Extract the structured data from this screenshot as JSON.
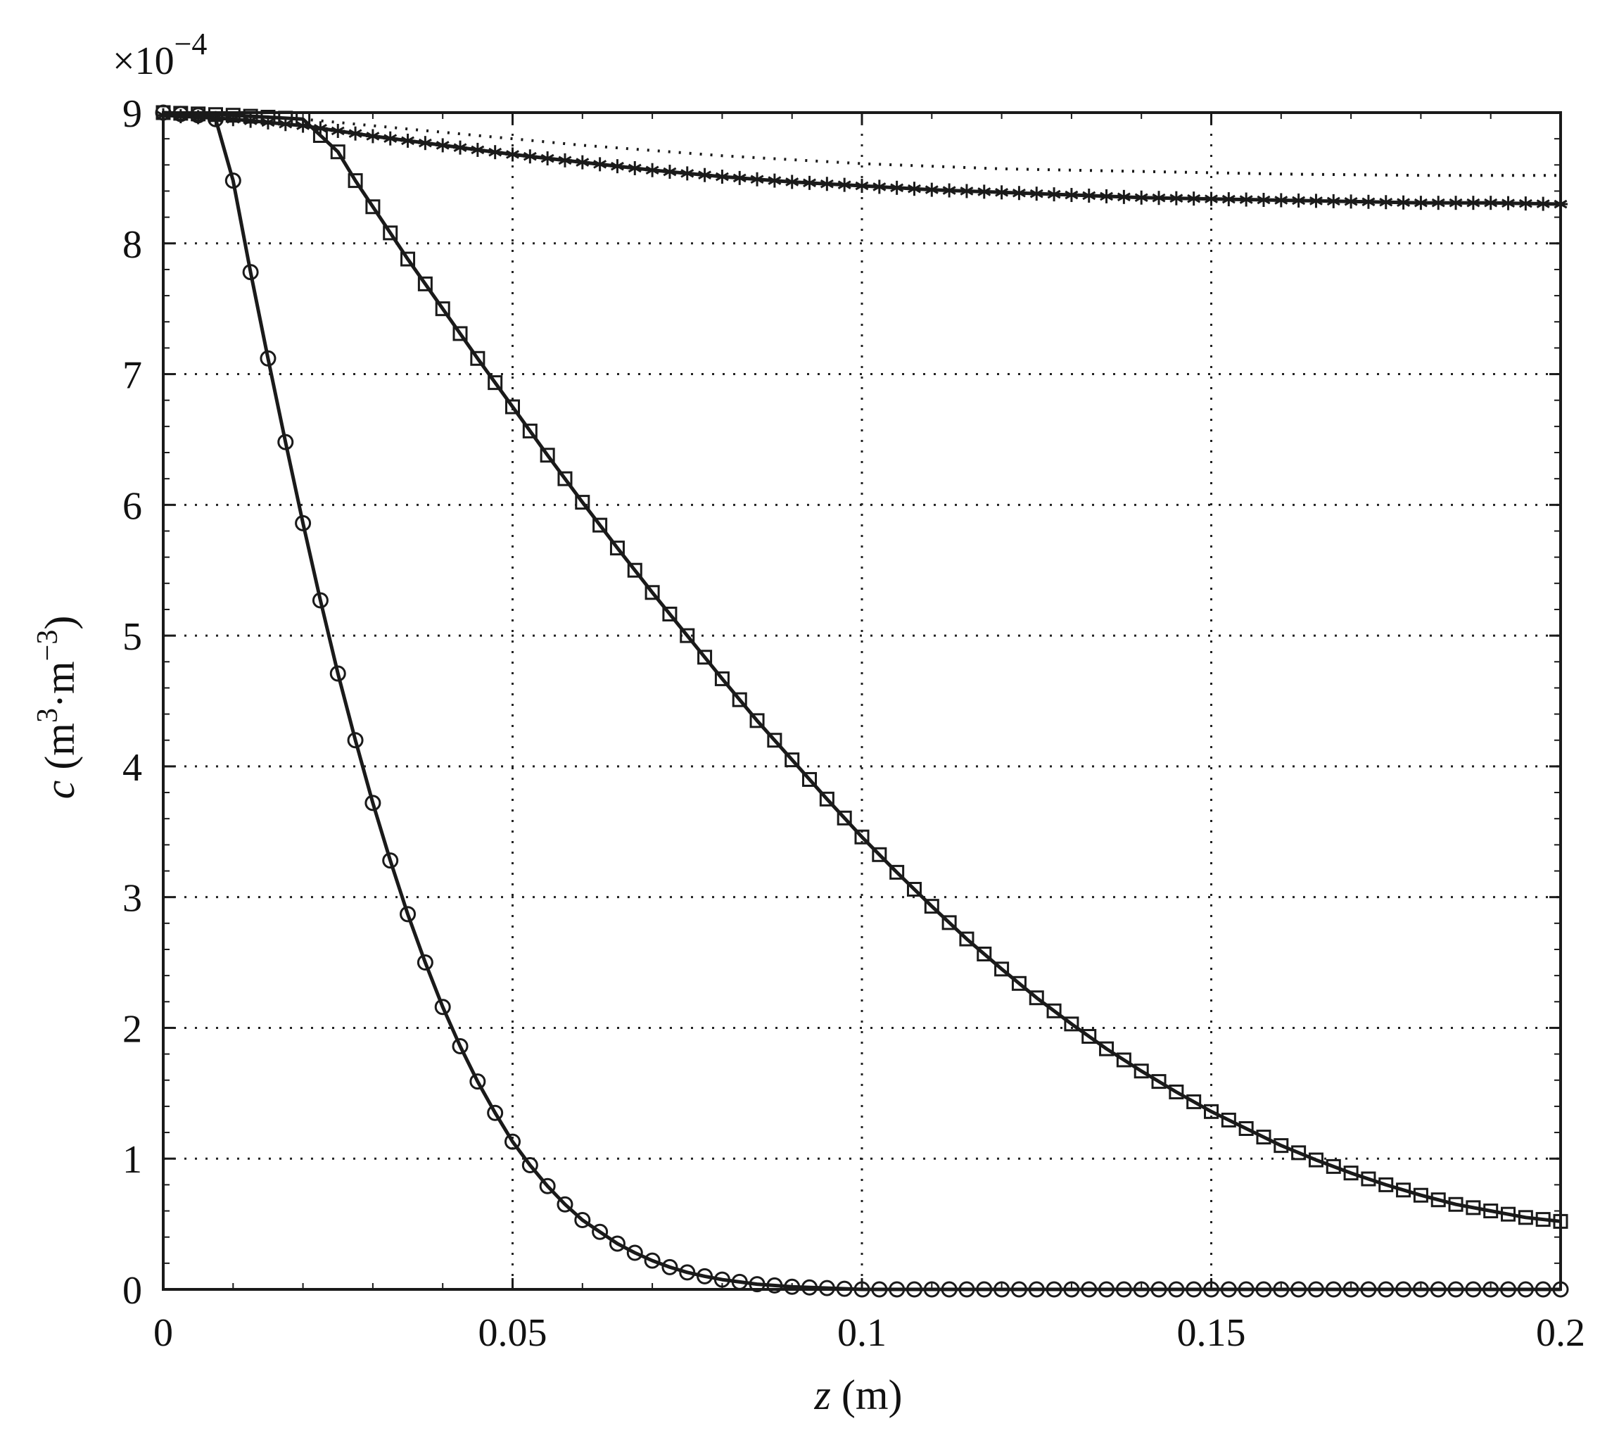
{
  "chart_data": {
    "type": "line",
    "title": "",
    "xlabel": {
      "var": "z",
      "unit": " (m)"
    },
    "ylabel": {
      "var": "c",
      "unit_pre": " (m",
      "sup1": "3",
      "mid": "·m",
      "sup2": "−3",
      "unit_post": ")"
    },
    "multiplier": {
      "base": "×10",
      "exp": "−4"
    },
    "xlim": [
      0,
      0.2
    ],
    "ylim": [
      0,
      9
    ],
    "grid": true,
    "grid_style": "dotted",
    "xticks": [
      0,
      0.05,
      0.1,
      0.15,
      0.2
    ],
    "xtick_labels": [
      "0",
      "0.05",
      "0.1",
      "0.15",
      "0.2"
    ],
    "yticks": [
      0,
      1,
      2,
      3,
      4,
      5,
      6,
      7,
      8,
      9
    ],
    "ytick_labels": [
      "0",
      "1",
      "2",
      "3",
      "4",
      "5",
      "6",
      "7",
      "8",
      "9"
    ],
    "series": [
      {
        "marker": "circle",
        "line": "solid",
        "color": "#1a1a1a",
        "x": [
          0,
          0.005,
          0.0075,
          0.01,
          0.0125,
          0.015,
          0.0175,
          0.02,
          0.0225,
          0.025,
          0.0275,
          0.03,
          0.0325,
          0.035,
          0.0375,
          0.04,
          0.0425,
          0.045,
          0.0475,
          0.05,
          0.0525,
          0.055,
          0.0575,
          0.06,
          0.0625,
          0.065,
          0.0675,
          0.07,
          0.0725,
          0.075,
          0.0775,
          0.08,
          0.085,
          0.09,
          0.095,
          0.1,
          0.11,
          0.12,
          0.13,
          0.14,
          0.15,
          0.16,
          0.17,
          0.18,
          0.19,
          0.2
        ],
        "y": [
          9.0,
          8.98,
          8.95,
          8.48,
          7.78,
          7.12,
          6.48,
          5.86,
          5.27,
          4.71,
          4.2,
          3.72,
          3.28,
          2.87,
          2.5,
          2.16,
          1.86,
          1.59,
          1.35,
          1.13,
          0.95,
          0.79,
          0.65,
          0.53,
          0.44,
          0.35,
          0.28,
          0.22,
          0.17,
          0.13,
          0.1,
          0.075,
          0.04,
          0.02,
          0.01,
          0.0,
          0.0,
          0.0,
          0.0,
          0.0,
          0.0,
          0.0,
          0.0,
          0.0,
          0.0,
          0.0
        ]
      },
      {
        "marker": "square",
        "line": "solid",
        "color": "#1a1a1a",
        "x": [
          0,
          0.01,
          0.02,
          0.025,
          0.0275,
          0.03,
          0.0325,
          0.035,
          0.04,
          0.045,
          0.05,
          0.055,
          0.06,
          0.065,
          0.07,
          0.075,
          0.08,
          0.085,
          0.09,
          0.095,
          0.1,
          0.105,
          0.11,
          0.115,
          0.12,
          0.125,
          0.13,
          0.135,
          0.14,
          0.145,
          0.15,
          0.155,
          0.16,
          0.165,
          0.17,
          0.175,
          0.18,
          0.185,
          0.19,
          0.195,
          0.2
        ],
        "y": [
          9.0,
          8.98,
          8.95,
          8.7,
          8.48,
          8.28,
          8.08,
          7.88,
          7.5,
          7.12,
          6.75,
          6.38,
          6.02,
          5.67,
          5.33,
          5.0,
          4.67,
          4.35,
          4.05,
          3.75,
          3.46,
          3.19,
          2.93,
          2.68,
          2.45,
          2.23,
          2.03,
          1.84,
          1.67,
          1.51,
          1.36,
          1.23,
          1.1,
          0.99,
          0.89,
          0.8,
          0.72,
          0.65,
          0.6,
          0.55,
          0.52
        ]
      },
      {
        "marker": "asterisk",
        "line": "solid",
        "color": "#1a1a1a",
        "x": [
          0,
          0.01,
          0.02,
          0.03,
          0.04,
          0.05,
          0.06,
          0.07,
          0.08,
          0.09,
          0.1,
          0.11,
          0.12,
          0.13,
          0.14,
          0.15,
          0.16,
          0.17,
          0.18,
          0.19,
          0.2
        ],
        "y": [
          8.98,
          8.95,
          8.9,
          8.82,
          8.75,
          8.68,
          8.62,
          8.56,
          8.51,
          8.47,
          8.44,
          8.41,
          8.39,
          8.37,
          8.35,
          8.34,
          8.33,
          8.32,
          8.31,
          8.31,
          8.3
        ]
      },
      {
        "marker": "none",
        "line": "dotted",
        "color": "#1a1a1a",
        "x": [
          0,
          0.02,
          0.04,
          0.06,
          0.08,
          0.1,
          0.12,
          0.14,
          0.16,
          0.18,
          0.2
        ],
        "y": [
          9.0,
          8.95,
          8.85,
          8.75,
          8.67,
          8.61,
          8.57,
          8.55,
          8.53,
          8.52,
          8.52
        ]
      }
    ]
  }
}
